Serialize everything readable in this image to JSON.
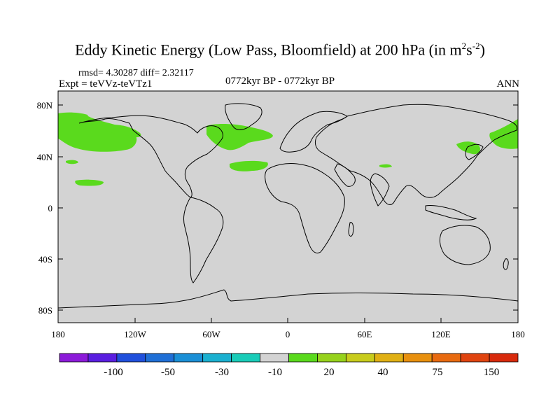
{
  "title": {
    "main": "Eddy Kinetic Energy (Low Pass, Bloomfield) at 200 hPa (in m",
    "sup1": "2",
    "mid": "s",
    "sup2": "-2",
    "end": ")"
  },
  "stats": "rmsd= 4.30287  diff= 2.32117",
  "expt": "Expt = teVVz-teVTz1",
  "period": "0772kyr BP - 0772kyr BP",
  "season": "ANN",
  "lat_ticks": [
    "80N",
    "40N",
    "0",
    "40S",
    "80S"
  ],
  "lon_ticks": [
    "180",
    "120W",
    "60W",
    "0",
    "60E",
    "120E",
    "180"
  ],
  "colorbar": {
    "labels": [
      "-100",
      "-50",
      "-30",
      "-10",
      "20",
      "40",
      "75",
      "150"
    ],
    "colors": [
      "#8c1ad9",
      "#5a1ee0",
      "#2050dc",
      "#1f6fd6",
      "#1a8fd6",
      "#1ab0d0",
      "#19ccb8",
      "#d3d3d3",
      "#5ada1d",
      "#96d21c",
      "#c8cc1c",
      "#e0b014",
      "#e8900e",
      "#e86a10",
      "#e04410",
      "#d82a0c"
    ]
  },
  "colors": {
    "ocean_land_bg": "#d3d3d3",
    "positive_anomaly": "#5ada1d"
  }
}
